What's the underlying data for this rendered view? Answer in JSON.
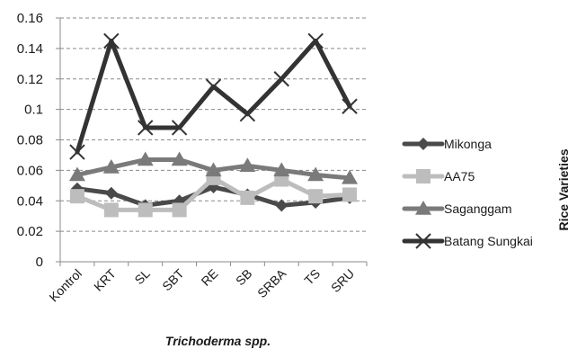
{
  "chart_data": {
    "type": "line",
    "categories": [
      "Kontrol",
      "KRT",
      "SL",
      "SBT",
      "RE",
      "SB",
      "SRBA",
      "TS",
      "SRU"
    ],
    "series": [
      {
        "name": "Mikonga",
        "values": [
          0.048,
          0.045,
          0.037,
          0.04,
          0.049,
          0.044,
          0.037,
          0.039,
          0.042
        ],
        "color": "#4a4a4a",
        "marker": "diamond"
      },
      {
        "name": "AA75",
        "values": [
          0.043,
          0.034,
          0.034,
          0.034,
          0.055,
          0.042,
          0.054,
          0.043,
          0.044
        ],
        "color": "#bdbdbd",
        "marker": "square"
      },
      {
        "name": "Saganggam",
        "values": [
          0.057,
          0.062,
          0.067,
          0.067,
          0.06,
          0.063,
          0.06,
          0.057,
          0.055
        ],
        "color": "#7a7a7a",
        "marker": "triangle"
      },
      {
        "name": "Batang Sungkai",
        "values": [
          0.072,
          0.145,
          0.088,
          0.088,
          0.115,
          0.097,
          0.12,
          0.145,
          0.102
        ],
        "color": "#333333",
        "marker": "x"
      }
    ],
    "y_ticks": [
      "0",
      "0.02",
      "0.04",
      "0.06",
      "0.08",
      "0.1",
      "0.12",
      "0.14",
      "0.16"
    ],
    "ylim": [
      0,
      0.16
    ],
    "xlabel": "Trichoderma spp.",
    "legend_title": "Rice Varieties",
    "legend_position": "right",
    "grid": "horizontal dashed"
  }
}
